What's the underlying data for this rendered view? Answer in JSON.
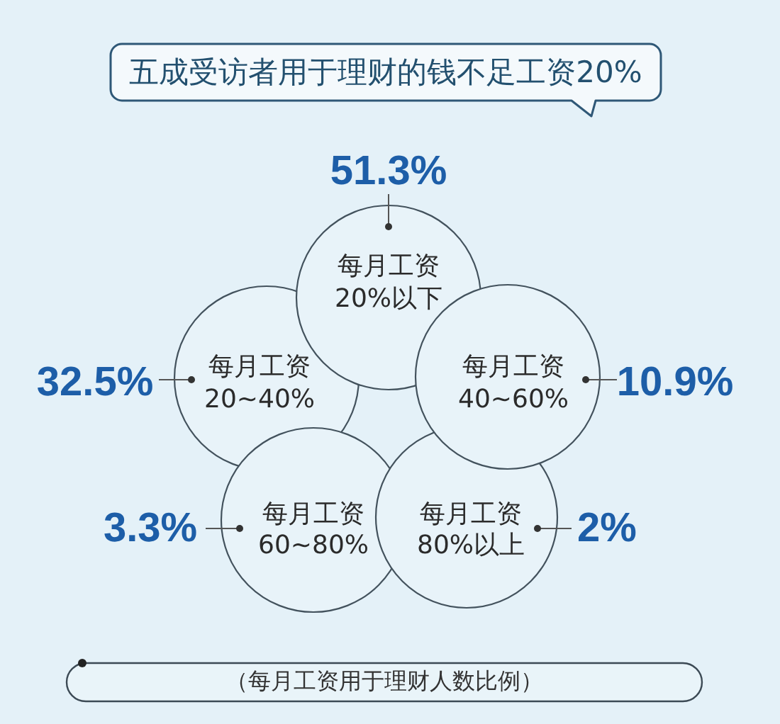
{
  "chart_data": {
    "type": "other",
    "title": "五成受访者用于理财的钱不足工资20%",
    "categories": [
      "每月工资\n20%以下",
      "每月工资\n20~40%",
      "每月工资\n40~60%",
      "每月工资\n60~80%",
      "每月工资\n80%以上"
    ],
    "values": [
      51.3,
      32.5,
      10.9,
      3.3,
      2
    ],
    "value_labels": [
      "51.3%",
      "32.5%",
      "10.9%",
      "3.3%",
      "2%"
    ],
    "annotations": [
      "（每月工资用于理财人数比例）"
    ]
  }
}
